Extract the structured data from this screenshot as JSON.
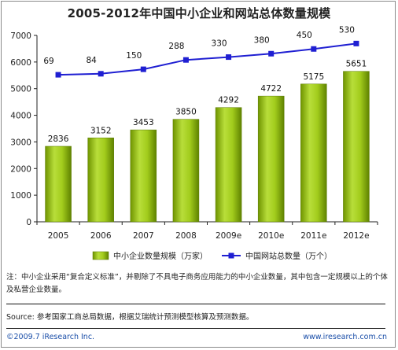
{
  "chart_data": {
    "type": "bar",
    "title": "2005-2012年中国中小企业和网站总体数量规模",
    "categories": [
      "2005",
      "2006",
      "2007",
      "2008",
      "2009e",
      "2010e",
      "2011e",
      "2012e"
    ],
    "series": [
      {
        "name": "中小企业数量规模（万家）",
        "type": "bar",
        "values": [
          2836,
          3152,
          3453,
          3850,
          4292,
          4722,
          5175,
          5651
        ],
        "labels": [
          "2836",
          "3152",
          "3453",
          "3850",
          "4292",
          "4722",
          "5175",
          "5651"
        ],
        "color": "#99c010"
      },
      {
        "name": "中国网站总数量（万个）",
        "type": "line",
        "values": [
          69,
          84,
          150,
          288,
          330,
          380,
          450,
          530
        ],
        "labels": [
          "69",
          "84",
          "150",
          "288",
          "330",
          "380",
          "450",
          "530"
        ],
        "color": "#1f1fd2"
      }
    ],
    "y_ticks": [
      "0",
      "1000",
      "2000",
      "3000",
      "4000",
      "5000",
      "6000",
      "7000"
    ],
    "ylim": [
      0,
      7000
    ],
    "legend_position": "bottom",
    "grid": false
  },
  "note": "注：中小企业采用“复合定义标准”，并剔除了不具电子商务应用能力的中小企业数量，其中包含一定规模以上的个体及私营企业数量。",
  "source": "Source: 参考国家工商总局数据，根据艾瑞统计预测模型核算及预测数据。",
  "footer": {
    "copyright": "©2009.7 iResearch Inc.",
    "website": "www.iresearch.com.cn"
  }
}
